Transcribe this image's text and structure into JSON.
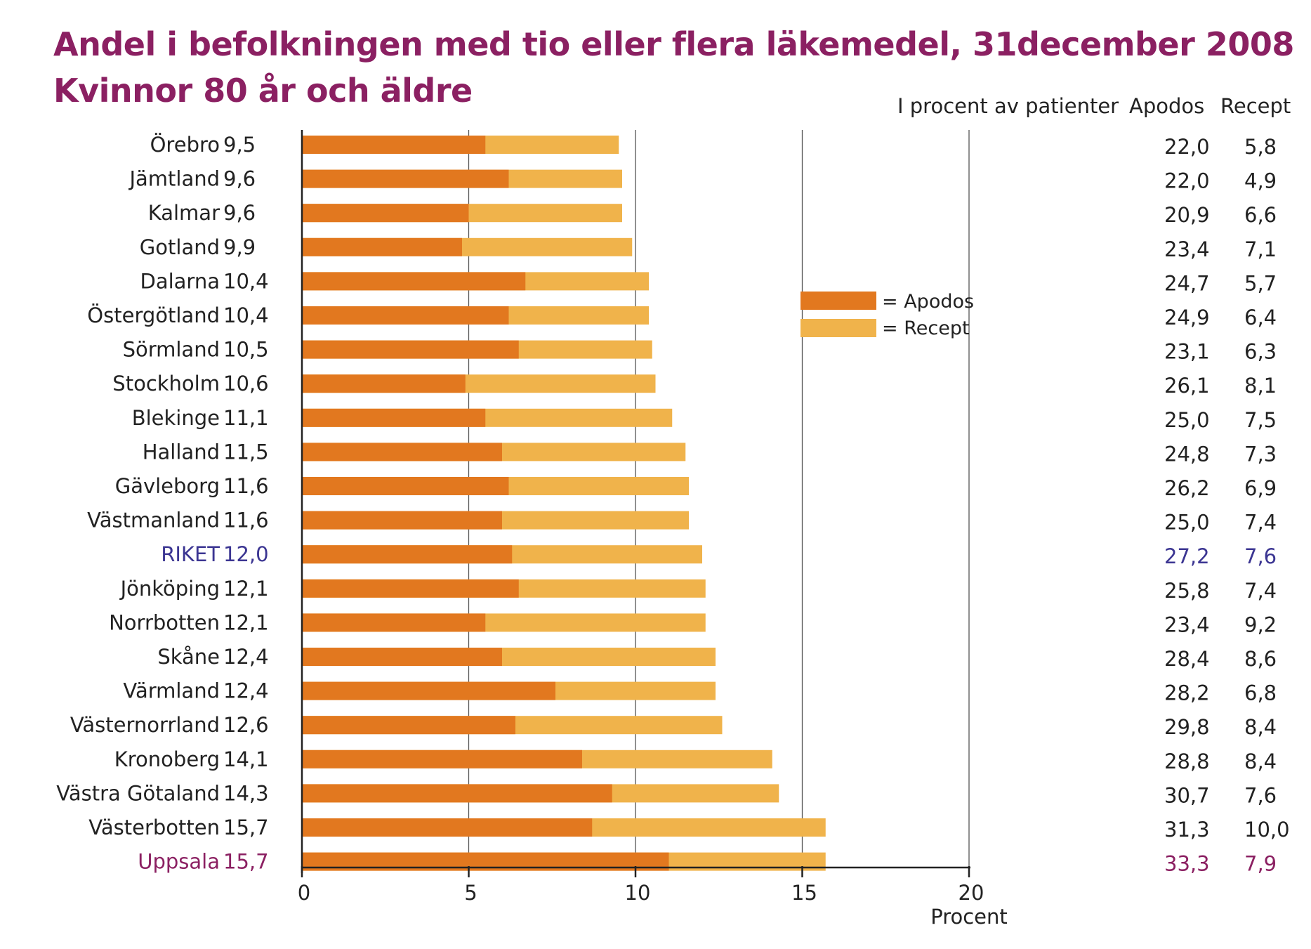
{
  "chart_data": {
    "type": "bar",
    "stacked": true,
    "orientation": "horizontal",
    "title": "Andel i befolkningen med tio eller flera läkemedel, 31december 2008",
    "subtitle": "Kvinnor 80 år och äldre",
    "xlabel": "Procent",
    "xlim": [
      0,
      20
    ],
    "xticks": [
      0,
      5,
      10,
      15,
      20
    ],
    "legend": {
      "placement": "center-right",
      "items": [
        "= Apodos",
        "= Recept"
      ]
    },
    "table_header": {
      "unit_label": "I procent av patienter",
      "col_apodos": "Apodos",
      "col_recept": "Recept"
    },
    "colors": {
      "apodos": "#e2781f",
      "recept": "#f0b34b",
      "riket": "#3b3592",
      "uppsala": "#8b2062",
      "title": "#8b2062"
    },
    "rows": [
      {
        "name": "Örebro",
        "total": "9,5",
        "apodos_bar": 5.5,
        "total_bar": 9.5,
        "apodos_pct": "22,0",
        "recept_pct": "5,8"
      },
      {
        "name": "Jämtland",
        "total": "9,6",
        "apodos_bar": 6.2,
        "total_bar": 9.6,
        "apodos_pct": "22,0",
        "recept_pct": "4,9"
      },
      {
        "name": "Kalmar",
        "total": "9,6",
        "apodos_bar": 5.0,
        "total_bar": 9.6,
        "apodos_pct": "20,9",
        "recept_pct": "6,6"
      },
      {
        "name": "Gotland",
        "total": "9,9",
        "apodos_bar": 4.8,
        "total_bar": 9.9,
        "apodos_pct": "23,4",
        "recept_pct": "7,1"
      },
      {
        "name": "Dalarna",
        "total": "10,4",
        "apodos_bar": 6.7,
        "total_bar": 10.4,
        "apodos_pct": "24,7",
        "recept_pct": "5,7"
      },
      {
        "name": "Östergötland",
        "total": "10,4",
        "apodos_bar": 6.2,
        "total_bar": 10.4,
        "apodos_pct": "24,9",
        "recept_pct": "6,4"
      },
      {
        "name": "Sörmland",
        "total": "10,5",
        "apodos_bar": 6.5,
        "total_bar": 10.5,
        "apodos_pct": "23,1",
        "recept_pct": "6,3"
      },
      {
        "name": "Stockholm",
        "total": "10,6",
        "apodos_bar": 4.9,
        "total_bar": 10.6,
        "apodos_pct": "26,1",
        "recept_pct": "8,1"
      },
      {
        "name": "Blekinge",
        "total": "11,1",
        "apodos_bar": 5.5,
        "total_bar": 11.1,
        "apodos_pct": "25,0",
        "recept_pct": "7,5"
      },
      {
        "name": "Halland",
        "total": "11,5",
        "apodos_bar": 6.0,
        "total_bar": 11.5,
        "apodos_pct": "24,8",
        "recept_pct": "7,3"
      },
      {
        "name": "Gävleborg",
        "total": "11,6",
        "apodos_bar": 6.2,
        "total_bar": 11.6,
        "apodos_pct": "26,2",
        "recept_pct": "6,9"
      },
      {
        "name": "Västmanland",
        "total": "11,6",
        "apodos_bar": 6.0,
        "total_bar": 11.6,
        "apodos_pct": "25,0",
        "recept_pct": "7,4"
      },
      {
        "name": "RIKET",
        "total": "12,0",
        "apodos_bar": 6.3,
        "total_bar": 12.0,
        "apodos_pct": "27,2",
        "recept_pct": "7,6",
        "highlight": "riket"
      },
      {
        "name": "Jönköping",
        "total": "12,1",
        "apodos_bar": 6.5,
        "total_bar": 12.1,
        "apodos_pct": "25,8",
        "recept_pct": "7,4"
      },
      {
        "name": "Norrbotten",
        "total": "12,1",
        "apodos_bar": 5.5,
        "total_bar": 12.1,
        "apodos_pct": "23,4",
        "recept_pct": "9,2"
      },
      {
        "name": "Skåne",
        "total": "12,4",
        "apodos_bar": 6.0,
        "total_bar": 12.4,
        "apodos_pct": "28,4",
        "recept_pct": "8,6"
      },
      {
        "name": "Värmland",
        "total": "12,4",
        "apodos_bar": 7.6,
        "total_bar": 12.4,
        "apodos_pct": "28,2",
        "recept_pct": "6,8"
      },
      {
        "name": "Västernorrland",
        "total": "12,6",
        "apodos_bar": 6.4,
        "total_bar": 12.6,
        "apodos_pct": "29,8",
        "recept_pct": "8,4"
      },
      {
        "name": "Kronoberg",
        "total": "14,1",
        "apodos_bar": 8.4,
        "total_bar": 14.1,
        "apodos_pct": "28,8",
        "recept_pct": "8,4"
      },
      {
        "name": "Västra Götaland",
        "total": "14,3",
        "apodos_bar": 9.3,
        "total_bar": 14.3,
        "apodos_pct": "30,7",
        "recept_pct": "7,6"
      },
      {
        "name": "Västerbotten",
        "total": "15,7",
        "apodos_bar": 8.7,
        "total_bar": 15.7,
        "apodos_pct": "31,3",
        "recept_pct": "10,0"
      },
      {
        "name": "Uppsala",
        "total": "15,7",
        "apodos_bar": 11.0,
        "total_bar": 15.7,
        "apodos_pct": "33,3",
        "recept_pct": "7,9",
        "highlight": "uppsala"
      }
    ]
  }
}
